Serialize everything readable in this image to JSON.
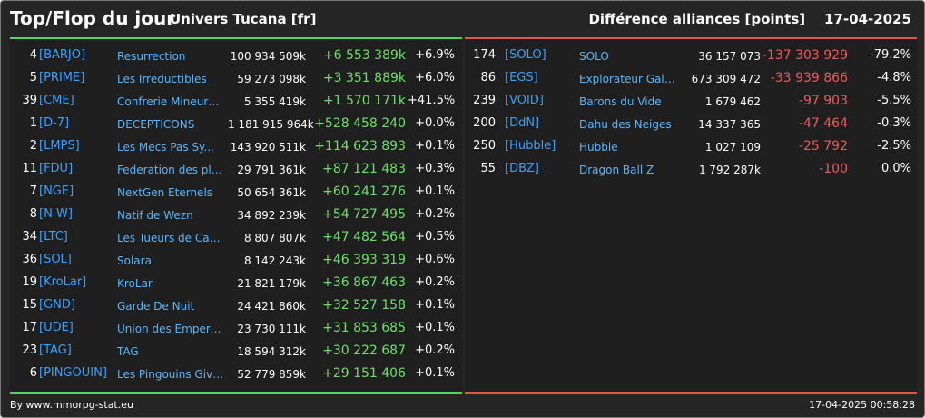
{
  "header": {
    "title": "Top/Flop du jour",
    "subtitle": "Univers Tucana [fr]",
    "right_title": "Différence alliances [points]",
    "date": "17-04-2025"
  },
  "top": [
    {
      "rank": "4",
      "tag": "[BARJO]",
      "name": "Resurrection",
      "total": "100 934 509k",
      "diff": "+6 553 389k",
      "pct": "+6.9%"
    },
    {
      "rank": "5",
      "tag": "[PRIME]",
      "name": "Les Irreductibles",
      "total": "59 273 098k",
      "diff": "+3 351 889k",
      "pct": "+6.0%"
    },
    {
      "rank": "39",
      "tag": "[CME]",
      "name": "Confrerie Mineurs ...",
      "total": "5 355 419k",
      "diff": "+1 570 171k",
      "pct": "+41.5%"
    },
    {
      "rank": "1",
      "tag": "[D-7]",
      "name": "DECEPTICONS",
      "total": "1 181 915 964k",
      "diff": "+528 458 240",
      "pct": "+0.0%"
    },
    {
      "rank": "2",
      "tag": "[LMPS]",
      "name": "Les Mecs Pas Sy...",
      "total": "143 920 511k",
      "diff": "+114 623 893",
      "pct": "+0.1%"
    },
    {
      "rank": "11",
      "tag": "[FDU]",
      "name": "Federation des pla...",
      "total": "29 791 361k",
      "diff": "+87 121 483",
      "pct": "+0.3%"
    },
    {
      "rank": "7",
      "tag": "[NGE]",
      "name": "NextGen Eternels",
      "total": "50 654 361k",
      "diff": "+60 241 276",
      "pct": "+0.1%"
    },
    {
      "rank": "8",
      "tag": "[N-W]",
      "name": "Natif de Wezn",
      "total": "34 892 239k",
      "diff": "+54 727 495",
      "pct": "+0.2%"
    },
    {
      "rank": "34",
      "tag": "[LTC]",
      "name": "Les Tueurs de Can...",
      "total": "8 807 807k",
      "diff": "+47 482 564",
      "pct": "+0.5%"
    },
    {
      "rank": "36",
      "tag": "[SOL]",
      "name": "Solara",
      "total": "8 142 243k",
      "diff": "+46 393 319",
      "pct": "+0.6%"
    },
    {
      "rank": "19",
      "tag": "[KroLar]",
      "name": "KroLar",
      "total": "21 821 179k",
      "diff": "+36 867 463",
      "pct": "+0.2%"
    },
    {
      "rank": "15",
      "tag": "[GND]",
      "name": "Garde De Nuit",
      "total": "24 421 860k",
      "diff": "+32 527 158",
      "pct": "+0.1%"
    },
    {
      "rank": "17",
      "tag": "[UDE]",
      "name": "Union des Empereur...",
      "total": "23 730 111k",
      "diff": "+31 853 685",
      "pct": "+0.1%"
    },
    {
      "rank": "23",
      "tag": "[TAG]",
      "name": "TAG",
      "total": "18 594 312k",
      "diff": "+30 222 687",
      "pct": "+0.2%"
    },
    {
      "rank": "6",
      "tag": "[PINGOUIN]",
      "name": "Les Pingouins Givre...",
      "total": "52 779 859k",
      "diff": "+29 151 406",
      "pct": "+0.1%"
    }
  ],
  "flop": [
    {
      "rank": "174",
      "tag": "[SOLO]",
      "name": "SOLO",
      "total": "36 157 073",
      "diff": "-137 303 929",
      "pct": "-79.2%"
    },
    {
      "rank": "86",
      "tag": "[EGS]",
      "name": "Explorateur Galacti...",
      "total": "673 309 472",
      "diff": "-33 939 866",
      "pct": "-4.8%"
    },
    {
      "rank": "239",
      "tag": "[VOID]",
      "name": "Barons du Vide",
      "total": "1 679 462",
      "diff": "-97 903",
      "pct": "-5.5%"
    },
    {
      "rank": "200",
      "tag": "[DdN]",
      "name": "Dahu des Neiges",
      "total": "14 337 365",
      "diff": "-47 464",
      "pct": "-0.3%"
    },
    {
      "rank": "250",
      "tag": "[Hubble]",
      "name": "Hubble",
      "total": "1 027 109",
      "diff": "-25 792",
      "pct": "-2.5%"
    },
    {
      "rank": "55",
      "tag": "[DBZ]",
      "name": "Dragon Ball Z",
      "total": "1 792 287k",
      "diff": "-100",
      "pct": "0.0%"
    }
  ],
  "footer": {
    "credit": "By www.mmorpg-stat.eu",
    "timestamp": "17-04-2025 00:58:28"
  },
  "colors": {
    "positive": "#6ee06a",
    "negative": "#ee5a5a",
    "tag": "#3aa0ff",
    "name": "#58b6ff"
  }
}
